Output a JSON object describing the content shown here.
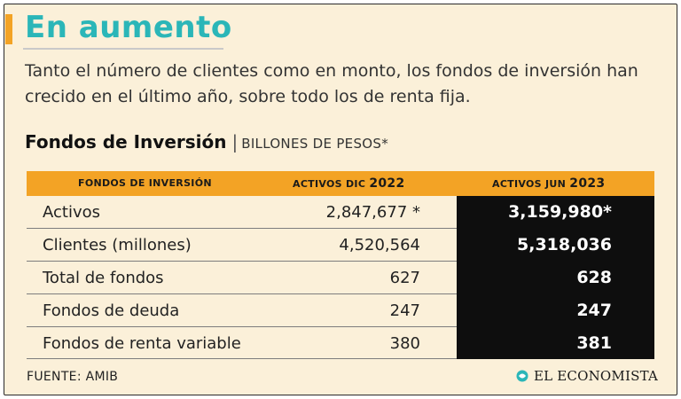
{
  "header": {
    "title": "En aumento",
    "subtitle": "Tanto el número de clientes como en monto, los fondos de inversión han crecido en el último año, sobre todo los de renta fija."
  },
  "section": {
    "title": "Fondos de Inversión",
    "separator": "|",
    "unit": "BILLONES DE PESOS*"
  },
  "table": {
    "columns": {
      "name": "FONDOS DE INVERSIÓN",
      "dec_prefix": "ACTIVOS  DIC",
      "dec_year": "2022",
      "jun_prefix": "ACTIVOS  JUN",
      "jun_year": "2023"
    },
    "rows": [
      {
        "name": "Activos",
        "dec": "2,847,677 *",
        "jun": "3,159,980*"
      },
      {
        "name": "Clientes (millones)",
        "dec": "4,520,564",
        "jun": "5,318,036"
      },
      {
        "name": "Total de fondos",
        "dec": "627",
        "jun": "628"
      },
      {
        "name": "Fondos de deuda",
        "dec": "247",
        "jun": "247"
      },
      {
        "name": "Fondos de renta variable",
        "dec": "380",
        "jun": "381"
      }
    ]
  },
  "footer": {
    "source": "FUENTE: AMIB",
    "brand": "EL ECONOMISTA"
  },
  "colors": {
    "accent": "#f3a325",
    "title": "#2bb6b8",
    "background": "#fbf0d9",
    "highlight_column": "#0e0e0e"
  }
}
